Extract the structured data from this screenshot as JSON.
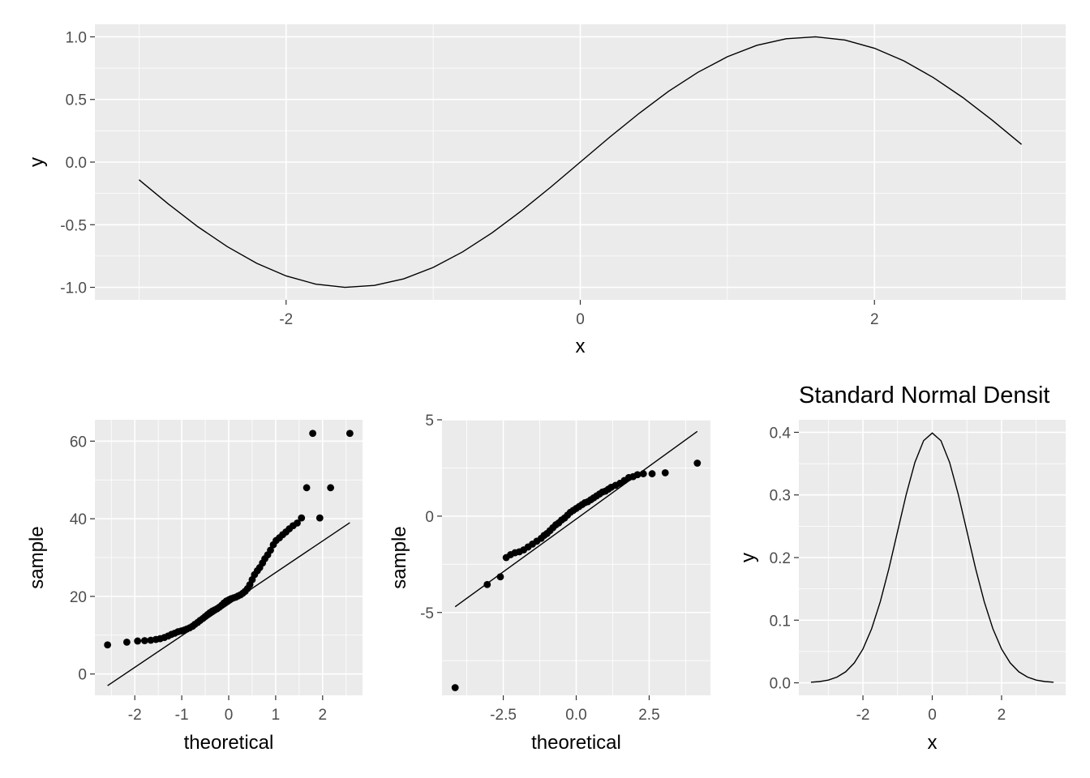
{
  "chart_data": [
    {
      "id": "sine",
      "type": "line",
      "title": "",
      "xlabel": "x",
      "ylabel": "y",
      "xlim": [
        -3.3,
        3.3
      ],
      "ylim": [
        -1.1,
        1.1
      ],
      "x_ticks": [
        -2,
        0,
        2
      ],
      "x_tick_labels": [
        "-2",
        "0",
        "2"
      ],
      "y_ticks": [
        -1,
        -0.5,
        0,
        0.5,
        1
      ],
      "y_tick_labels": [
        "-1.0",
        "-0.5",
        "0.0",
        "0.5",
        "1.0"
      ],
      "grid": true,
      "series": [
        {
          "x": [
            -3.0,
            -2.8,
            -2.6,
            -2.4,
            -2.2,
            -2.0,
            -1.8,
            -1.6,
            -1.4,
            -1.2,
            -1.0,
            -0.8,
            -0.6,
            -0.4,
            -0.2,
            0.0,
            0.2,
            0.4,
            0.6,
            0.8,
            1.0,
            1.2,
            1.4,
            1.6,
            1.8,
            2.0,
            2.2,
            2.4,
            2.6,
            2.8,
            3.0
          ],
          "y": [
            -0.141,
            -0.335,
            -0.516,
            -0.675,
            -0.808,
            -0.909,
            -0.974,
            -1.0,
            -0.985,
            -0.932,
            -0.841,
            -0.717,
            -0.565,
            -0.389,
            -0.199,
            0.0,
            0.199,
            0.389,
            0.565,
            0.717,
            0.841,
            0.932,
            0.985,
            1.0,
            0.974,
            0.909,
            0.808,
            0.675,
            0.516,
            0.335,
            0.141
          ]
        }
      ]
    },
    {
      "id": "qq1",
      "type": "scatter",
      "title": "",
      "xlabel": "theoretical",
      "ylabel": "sample",
      "xlim": [
        -2.85,
        2.85
      ],
      "ylim": [
        -5.5,
        65.5
      ],
      "x_ticks": [
        -2,
        -1,
        0,
        1,
        2
      ],
      "x_tick_labels": [
        "-2",
        "-1",
        "0",
        "1",
        "2"
      ],
      "y_ticks": [
        0,
        20,
        40,
        60
      ],
      "y_tick_labels": [
        "0",
        "20",
        "40",
        "60"
      ],
      "grid": true,
      "reference_line": {
        "x": [
          -2.58,
          2.58
        ],
        "y": [
          -3.0,
          39.0
        ]
      },
      "points": {
        "x": [
          -2.58,
          -2.17,
          -1.94,
          -1.79,
          -1.66,
          -1.55,
          -1.46,
          -1.37,
          -1.29,
          -1.22,
          -1.15,
          -1.08,
          -1.01,
          -0.95,
          -0.89,
          -0.83,
          -0.77,
          -0.72,
          -0.66,
          -0.61,
          -0.55,
          -0.5,
          -0.45,
          -0.4,
          -0.35,
          -0.3,
          -0.25,
          -0.2,
          -0.15,
          -0.1,
          -0.05,
          0.0,
          0.05,
          0.1,
          0.15,
          0.2,
          0.25,
          0.3,
          0.35,
          0.4,
          0.45,
          0.5,
          0.55,
          0.61,
          0.66,
          0.72,
          0.77,
          0.83,
          0.89,
          0.95,
          1.01,
          1.08,
          1.15,
          1.22,
          1.29,
          1.37,
          1.46,
          1.55,
          1.66,
          1.79,
          1.94,
          2.17,
          2.58
        ],
        "y": [
          7.5,
          8.2,
          8.5,
          8.6,
          8.7,
          8.9,
          9.1,
          9.4,
          9.8,
          10.2,
          10.5,
          10.9,
          11.1,
          11.3,
          11.6,
          11.9,
          12.3,
          12.8,
          13.3,
          13.8,
          14.3,
          14.8,
          15.3,
          15.8,
          16.2,
          16.5,
          16.8,
          17.2,
          17.7,
          18.3,
          18.8,
          19.1,
          19.4,
          19.6,
          19.8,
          20.1,
          20.4,
          20.8,
          21.3,
          22.0,
          23.0,
          24.3,
          25.6,
          26.6,
          27.4,
          28.6,
          29.7,
          30.7,
          31.9,
          33.3,
          34.4,
          35.1,
          35.9,
          36.6,
          37.4,
          38.2,
          38.9,
          40.2,
          48.0,
          62.0,
          40.2,
          48.0,
          62.0
        ]
      }
    },
    {
      "id": "qq2",
      "type": "scatter",
      "title": "",
      "xlabel": "theoretical",
      "ylabel": "sample",
      "xlim": [
        -4.6,
        4.6
      ],
      "ylim": [
        -9.3,
        5.0
      ],
      "x_ticks": [
        -2.5,
        0,
        2.5
      ],
      "x_tick_labels": [
        "-2.5",
        "0.0",
        "2.5"
      ],
      "y_ticks": [
        -5,
        0,
        5
      ],
      "y_tick_labels": [
        "-5",
        "0",
        "5"
      ],
      "grid": true,
      "reference_line": {
        "x": [
          -4.15,
          4.15
        ],
        "y": [
          -4.7,
          4.4
        ]
      },
      "points": {
        "x": [
          -4.15,
          -3.05,
          -2.6,
          -2.4,
          -2.25,
          -2.1,
          -1.95,
          -1.8,
          -1.65,
          -1.5,
          -1.35,
          -1.2,
          -1.1,
          -1.0,
          -0.9,
          -0.8,
          -0.7,
          -0.6,
          -0.5,
          -0.4,
          -0.3,
          -0.2,
          -0.1,
          0.0,
          0.1,
          0.2,
          0.3,
          0.4,
          0.5,
          0.6,
          0.7,
          0.8,
          0.9,
          1.0,
          1.1,
          1.2,
          1.35,
          1.5,
          1.65,
          1.8,
          1.95,
          2.1,
          2.3,
          2.6,
          3.05,
          4.15
        ],
        "y": [
          -8.9,
          -3.55,
          -3.15,
          -2.15,
          -2.0,
          -1.9,
          -1.85,
          -1.75,
          -1.6,
          -1.45,
          -1.3,
          -1.15,
          -1.0,
          -0.9,
          -0.75,
          -0.6,
          -0.45,
          -0.35,
          -0.2,
          -0.1,
          0.05,
          0.2,
          0.3,
          0.4,
          0.5,
          0.6,
          0.7,
          0.75,
          0.85,
          0.95,
          1.05,
          1.15,
          1.25,
          1.3,
          1.4,
          1.5,
          1.6,
          1.7,
          1.85,
          2.0,
          2.05,
          2.15,
          2.2,
          2.2,
          2.25,
          2.75
        ]
      }
    },
    {
      "id": "density",
      "type": "line",
      "title": "Standard Normal Densit",
      "xlabel": "x",
      "ylabel": "y",
      "xlim": [
        -3.85,
        3.85
      ],
      "ylim": [
        -0.02,
        0.42
      ],
      "x_ticks": [
        -2,
        0,
        2
      ],
      "x_tick_labels": [
        "-2",
        "0",
        "2"
      ],
      "y_ticks": [
        0,
        0.1,
        0.2,
        0.3,
        0.4
      ],
      "y_tick_labels": [
        "0.0",
        "0.1",
        "0.2",
        "0.3",
        "0.4"
      ],
      "grid": true,
      "series": [
        {
          "x": [
            -3.5,
            -3.25,
            -3.0,
            -2.75,
            -2.5,
            -2.25,
            -2.0,
            -1.75,
            -1.5,
            -1.25,
            -1.0,
            -0.75,
            -0.5,
            -0.25,
            0.0,
            0.25,
            0.5,
            0.75,
            1.0,
            1.25,
            1.5,
            1.75,
            2.0,
            2.25,
            2.5,
            2.75,
            3.0,
            3.25,
            3.5
          ],
          "y": [
            0.0009,
            0.002,
            0.0044,
            0.0091,
            0.0175,
            0.0317,
            0.054,
            0.0863,
            0.1295,
            0.1826,
            0.242,
            0.3011,
            0.3521,
            0.3867,
            0.3989,
            0.3867,
            0.3521,
            0.3011,
            0.242,
            0.1826,
            0.1295,
            0.0863,
            0.054,
            0.0317,
            0.0175,
            0.0091,
            0.0044,
            0.002,
            0.0009
          ]
        }
      ]
    }
  ]
}
